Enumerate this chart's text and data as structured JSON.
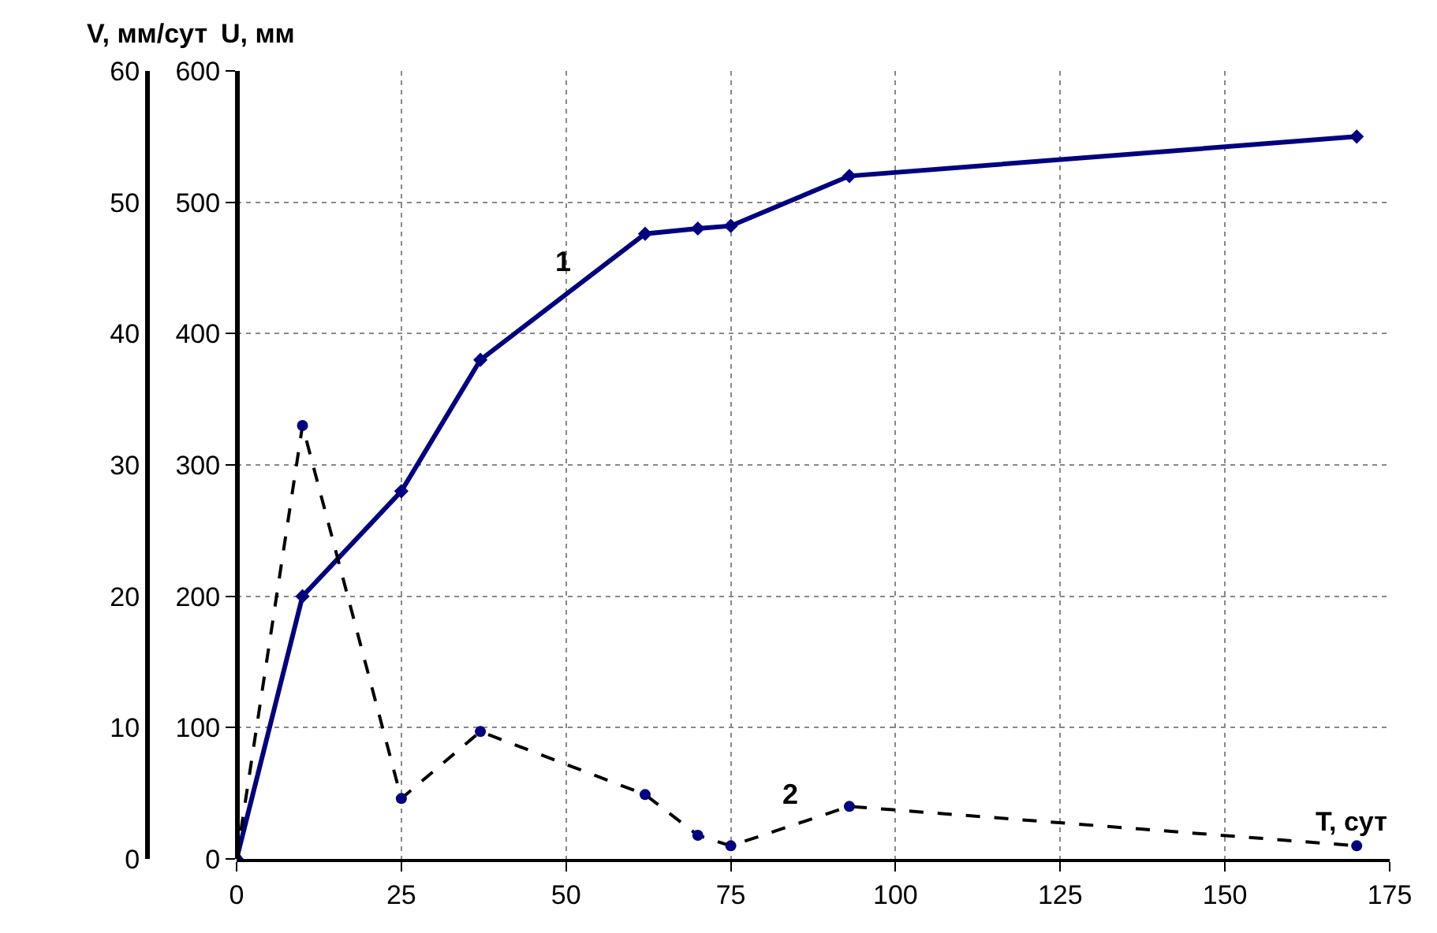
{
  "chart_data": {
    "type": "line",
    "x": [
      0,
      10,
      25,
      37,
      62,
      70,
      75,
      93,
      170
    ],
    "series": [
      {
        "name": "1",
        "color": "#000080",
        "marker": "diamond",
        "line_style": "solid",
        "values": [
          0,
          200,
          280,
          380,
          476,
          480,
          482,
          520,
          550
        ]
      },
      {
        "name": "2",
        "color": "#000000",
        "marker": "circle",
        "line_style": "dashed",
        "axis": "y2",
        "values": [
          0,
          33,
          4.6,
          9.7,
          4.9,
          1.8,
          1.0,
          4.0,
          1.0
        ]
      }
    ],
    "xlabel": "T, сут",
    "ylabel": "U, мм",
    "y2label": "V, мм/сут",
    "xlim": [
      0,
      175
    ],
    "xticks": [
      0,
      25,
      50,
      75,
      100,
      125,
      150,
      175
    ],
    "ylim": [
      0,
      600
    ],
    "yticks": [
      0,
      100,
      200,
      300,
      400,
      500,
      600
    ],
    "y2lim": [
      0,
      60
    ],
    "y2ticks": [
      0,
      10,
      20,
      30,
      40,
      50,
      60
    ],
    "grid": true,
    "legend": false
  }
}
